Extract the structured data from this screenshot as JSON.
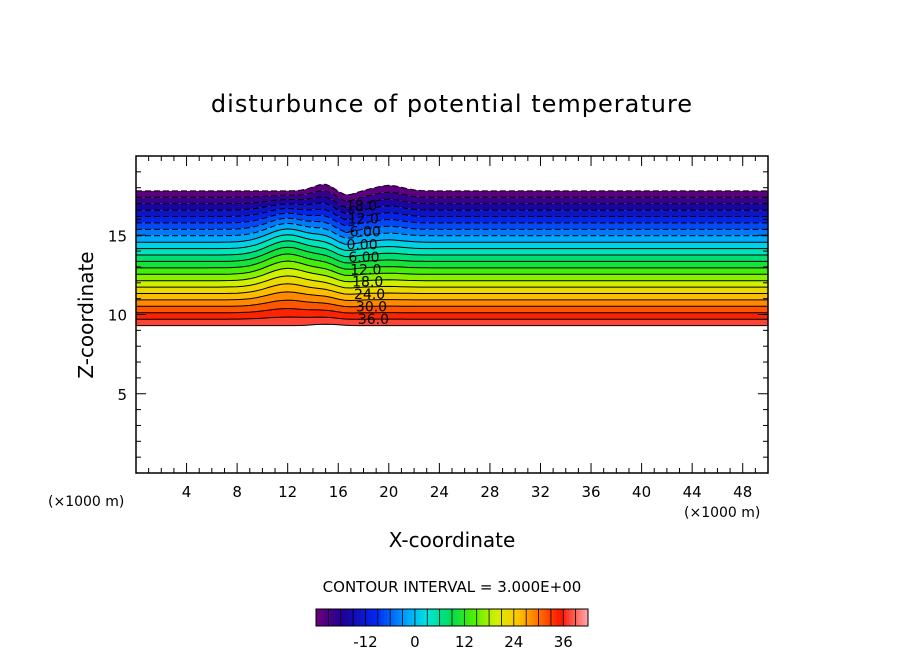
{
  "chart_data": {
    "type": "contour",
    "title": "disturbunce of potential temperature",
    "xlabel": "X-coordinate",
    "ylabel": "Z-coordinate",
    "x_unit": "(×1000 m)",
    "z_unit": "(×1000 m)",
    "xlim": [
      0,
      50
    ],
    "ylim": [
      0,
      20
    ],
    "x_ticks": [
      4,
      8,
      12,
      16,
      20,
      24,
      28,
      32,
      36,
      40,
      44,
      48
    ],
    "y_ticks": [
      5,
      10,
      15
    ],
    "contour_interval_text": "CONTOUR INTERVAL = 3.000E+00",
    "contour_interval": 3.0,
    "levels": [
      -24,
      -21,
      -18,
      -15,
      -12,
      -9,
      -6,
      -3,
      0,
      3,
      6,
      9,
      12,
      15,
      18,
      21,
      24,
      27,
      30,
      33,
      36,
      39
    ],
    "negative_contours_dashed": true,
    "contour_labels": [
      "-18.0",
      "-12.0",
      "-6.00",
      "0.00",
      "6.00",
      "12.0",
      "18.0",
      "24.0",
      "30.0",
      "36.0"
    ],
    "colorbar_ticks": [
      "-12",
      "0",
      "12",
      "24",
      "36"
    ],
    "colorbar_range": [
      -24,
      42
    ],
    "field_top_z": 17.8,
    "field_bottom_z": 9.3,
    "ridge_peak_x": 15,
    "warm_bump_x": 12
  }
}
